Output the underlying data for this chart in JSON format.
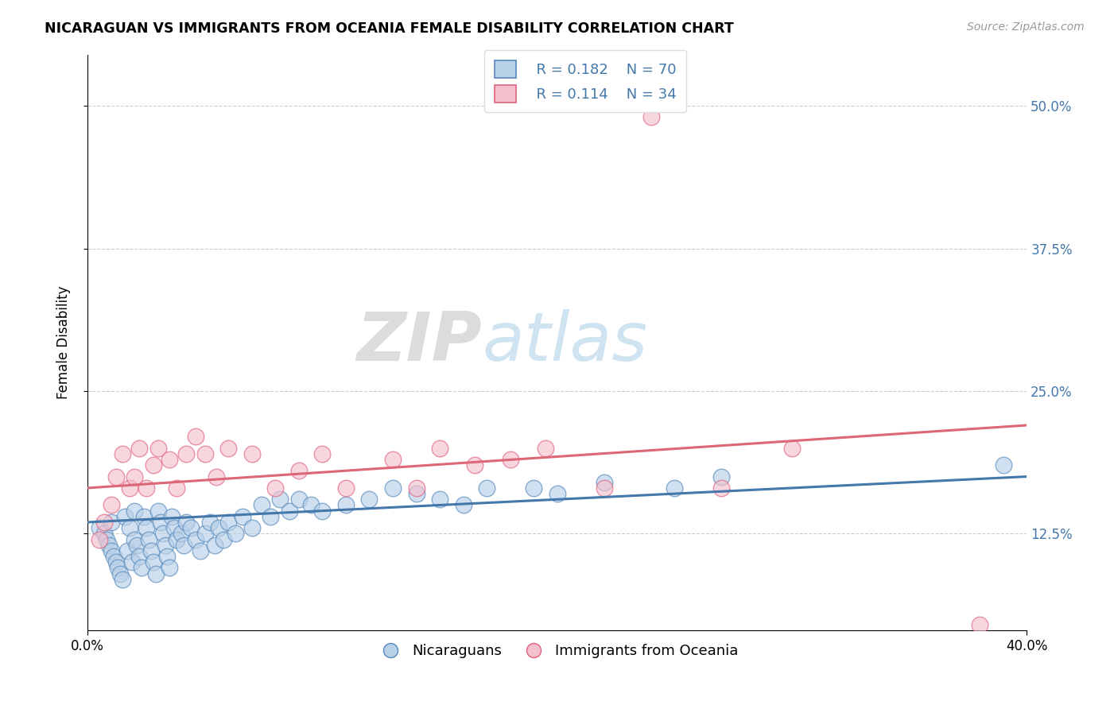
{
  "title": "NICARAGUAN VS IMMIGRANTS FROM OCEANIA FEMALE DISABILITY CORRELATION CHART",
  "source": "Source: ZipAtlas.com",
  "ylabel": "Female Disability",
  "ytick_labels": [
    "12.5%",
    "25.0%",
    "37.5%",
    "50.0%"
  ],
  "ytick_values": [
    0.125,
    0.25,
    0.375,
    0.5
  ],
  "xlim": [
    0.0,
    0.4
  ],
  "ylim": [
    0.04,
    0.545
  ],
  "watermark_zip": "ZIP",
  "watermark_atlas": "atlas",
  "legend_r1": "R = 0.182",
  "legend_n1": "N = 70",
  "legend_r2": "R = 0.114",
  "legend_n2": "N = 34",
  "color_blue_fill": "#b8d0e8",
  "color_pink_fill": "#f4c0cc",
  "color_blue_edge": "#5588bb",
  "color_pink_edge": "#e06080",
  "blue_line_color": "#4477aa",
  "pink_line_color": "#dd6677",
  "scatter_blue_x": [
    0.005,
    0.007,
    0.008,
    0.009,
    0.01,
    0.01,
    0.011,
    0.012,
    0.013,
    0.014,
    0.015,
    0.016,
    0.017,
    0.018,
    0.019,
    0.02,
    0.02,
    0.021,
    0.022,
    0.023,
    0.024,
    0.025,
    0.026,
    0.027,
    0.028,
    0.029,
    0.03,
    0.031,
    0.032,
    0.033,
    0.034,
    0.035,
    0.036,
    0.037,
    0.038,
    0.04,
    0.041,
    0.042,
    0.044,
    0.046,
    0.048,
    0.05,
    0.052,
    0.054,
    0.056,
    0.058,
    0.06,
    0.063,
    0.066,
    0.07,
    0.074,
    0.078,
    0.082,
    0.086,
    0.09,
    0.095,
    0.1,
    0.11,
    0.12,
    0.13,
    0.14,
    0.15,
    0.16,
    0.17,
    0.19,
    0.2,
    0.22,
    0.25,
    0.27,
    0.39
  ],
  "scatter_blue_y": [
    0.13,
    0.125,
    0.12,
    0.115,
    0.11,
    0.135,
    0.105,
    0.1,
    0.095,
    0.09,
    0.085,
    0.14,
    0.11,
    0.13,
    0.1,
    0.145,
    0.12,
    0.115,
    0.105,
    0.095,
    0.14,
    0.13,
    0.12,
    0.11,
    0.1,
    0.09,
    0.145,
    0.135,
    0.125,
    0.115,
    0.105,
    0.095,
    0.14,
    0.13,
    0.12,
    0.125,
    0.115,
    0.135,
    0.13,
    0.12,
    0.11,
    0.125,
    0.135,
    0.115,
    0.13,
    0.12,
    0.135,
    0.125,
    0.14,
    0.13,
    0.15,
    0.14,
    0.155,
    0.145,
    0.155,
    0.15,
    0.145,
    0.15,
    0.155,
    0.165,
    0.16,
    0.155,
    0.15,
    0.165,
    0.165,
    0.16,
    0.17,
    0.165,
    0.175,
    0.185
  ],
  "scatter_pink_x": [
    0.005,
    0.007,
    0.01,
    0.012,
    0.015,
    0.018,
    0.02,
    0.022,
    0.025,
    0.028,
    0.03,
    0.035,
    0.038,
    0.042,
    0.046,
    0.05,
    0.055,
    0.06,
    0.07,
    0.08,
    0.09,
    0.1,
    0.11,
    0.13,
    0.14,
    0.15,
    0.165,
    0.18,
    0.195,
    0.22,
    0.24,
    0.27,
    0.3,
    0.38
  ],
  "scatter_pink_y": [
    0.12,
    0.135,
    0.15,
    0.175,
    0.195,
    0.165,
    0.175,
    0.2,
    0.165,
    0.185,
    0.2,
    0.19,
    0.165,
    0.195,
    0.21,
    0.195,
    0.175,
    0.2,
    0.195,
    0.165,
    0.18,
    0.195,
    0.165,
    0.19,
    0.165,
    0.2,
    0.185,
    0.19,
    0.2,
    0.165,
    0.49,
    0.165,
    0.2,
    0.045
  ],
  "blue_line_x": [
    0.0,
    0.4
  ],
  "blue_line_y": [
    0.135,
    0.175
  ],
  "pink_line_x": [
    0.0,
    0.4
  ],
  "pink_line_y": [
    0.165,
    0.22
  ]
}
